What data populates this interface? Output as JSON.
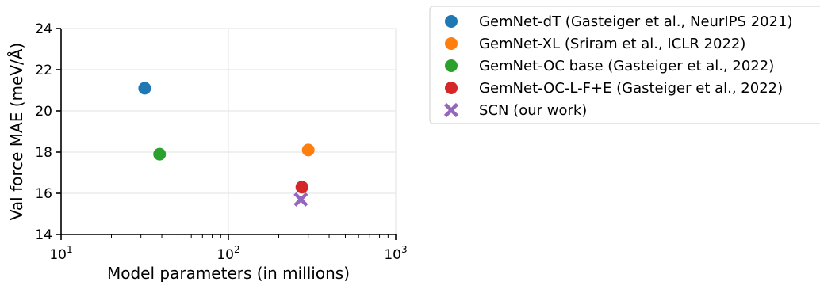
{
  "chart_data": {
    "type": "scatter",
    "xlabel": "Model parameters (in millions)",
    "ylabel": "Val force MAE (meV/Å)",
    "x_scale": "log",
    "xlim": [
      10,
      1000
    ],
    "ylim": [
      14,
      24
    ],
    "x_ticks": [
      {
        "value": 10,
        "base": "10",
        "exp": "1"
      },
      {
        "value": 100,
        "base": "10",
        "exp": "2"
      },
      {
        "value": 1000,
        "base": "10",
        "exp": "3"
      }
    ],
    "y_ticks": [
      14,
      16,
      18,
      20,
      22,
      24
    ],
    "grid": true,
    "legend_position": "outside-right",
    "series": [
      {
        "name": "GemNet-dT (Gasteiger et al., NeurIPS 2021)",
        "color": "#1f77b4",
        "marker": "circle",
        "points": [
          {
            "x": 31.6,
            "y": 21.1
          }
        ]
      },
      {
        "name": "GemNet-XL (Sriram et al., ICLR 2022)",
        "color": "#ff7f0e",
        "marker": "circle",
        "points": [
          {
            "x": 300,
            "y": 18.1
          }
        ]
      },
      {
        "name": "GemNet-OC base (Gasteiger et al., 2022)",
        "color": "#2ca02c",
        "marker": "circle",
        "points": [
          {
            "x": 38.8,
            "y": 17.9
          }
        ]
      },
      {
        "name": "GemNet-OC-L-F+E (Gasteiger et al., 2022)",
        "color": "#d62728",
        "marker": "circle",
        "points": [
          {
            "x": 275,
            "y": 16.3
          }
        ]
      },
      {
        "name": "SCN (our work)",
        "color": "#9467bd",
        "marker": "x",
        "points": [
          {
            "x": 271,
            "y": 15.7
          }
        ]
      }
    ]
  }
}
